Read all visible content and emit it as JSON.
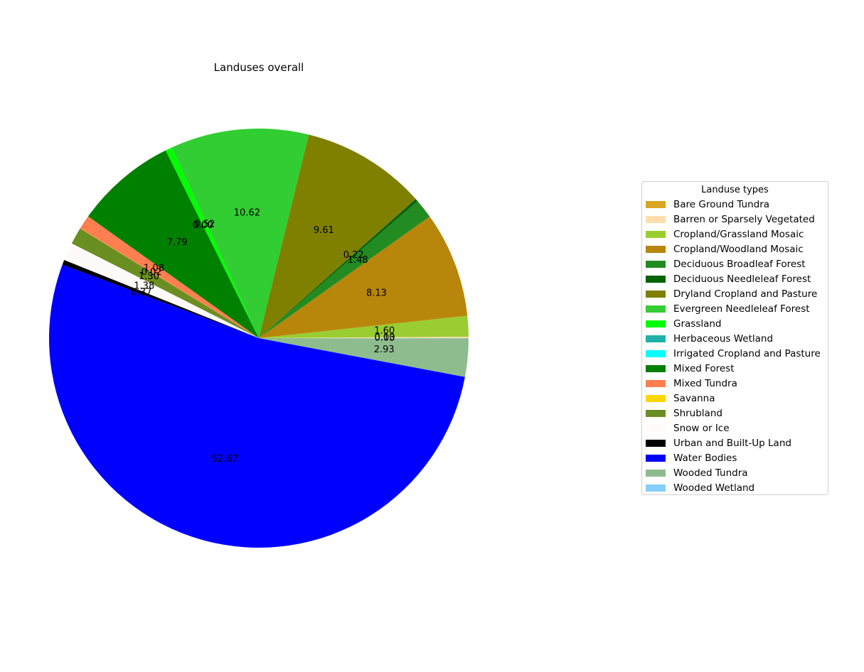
{
  "chart_data": {
    "type": "pie",
    "title": "Landuses overall",
    "legend": {
      "title": "Landuse types",
      "placement": "right"
    },
    "slices": [
      {
        "label": "Bare Ground Tundra",
        "value": 0.01,
        "display": "",
        "color": "#daa520"
      },
      {
        "label": "Barren or Sparsely Vegetated",
        "value": 0.1,
        "display": "0.10",
        "color": "#ffdead"
      },
      {
        "label": "Cropland/Grassland Mosaic",
        "value": 1.6,
        "display": "1.60",
        "color": "#9acd32"
      },
      {
        "label": "Cropland/Woodland Mosaic",
        "value": 8.13,
        "display": "8.13",
        "color": "#b8860b"
      },
      {
        "label": "Deciduous Broadleaf Forest",
        "value": 1.48,
        "display": "1.48",
        "color": "#228b22"
      },
      {
        "label": "Deciduous Needleleaf Forest",
        "value": 0.22,
        "display": "0.22",
        "color": "#006400"
      },
      {
        "label": "Dryland Cropland and Pasture",
        "value": 9.61,
        "display": "9.61",
        "color": "#808000"
      },
      {
        "label": "Evergreen Needleleaf Forest",
        "value": 10.62,
        "display": "10.62",
        "color": "#32cd32"
      },
      {
        "label": "Grassland",
        "value": 0.52,
        "display": "0.52",
        "color": "#00ff00"
      },
      {
        "label": "Herbaceous Wetland",
        "value": 0.0,
        "display": "0.00",
        "color": "#20b2aa"
      },
      {
        "label": "Irrigated Cropland and Pasture",
        "value": 0.0,
        "display": "0.00",
        "color": "#00ffff"
      },
      {
        "label": "Mixed Forest",
        "value": 7.79,
        "display": "7.79",
        "color": "#008000"
      },
      {
        "label": "Mixed Tundra",
        "value": 1.08,
        "display": "1.08",
        "color": "#ff7f50"
      },
      {
        "label": "Savanna",
        "value": 0.02,
        "display": "0.02",
        "color": "#ffd700"
      },
      {
        "label": "Shrubland",
        "value": 1.3,
        "display": "1.30",
        "color": "#6b8e23"
      },
      {
        "label": "Snow or Ice",
        "value": 1.38,
        "display": "1.38",
        "color": "#fffafa"
      },
      {
        "label": "Urban and Built-Up Land",
        "value": 0.37,
        "display": "0.37",
        "color": "#000000"
      },
      {
        "label": "Water Bodies",
        "value": 52.67,
        "display": "52.67",
        "color": "#0000ff"
      },
      {
        "label": "Wooded Tundra",
        "value": 2.93,
        "display": "2.93",
        "color": "#8fbc8f"
      },
      {
        "label": "Wooded Wetland",
        "value": 0.03,
        "display": "0.03",
        "color": "#87cefa"
      }
    ]
  }
}
